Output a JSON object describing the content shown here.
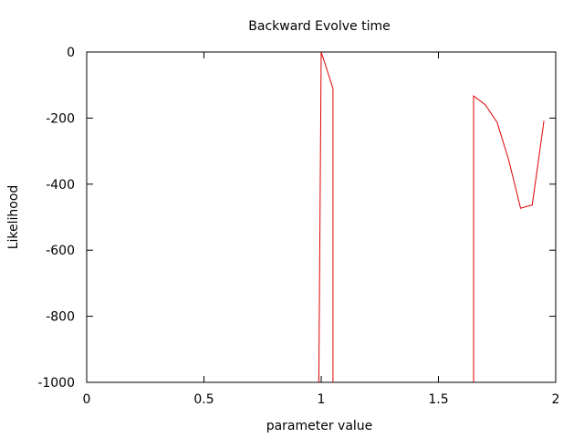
{
  "chart_data": {
    "type": "line",
    "title": "Backward Evolve time",
    "xlabel": "parameter value",
    "ylabel": "Likelihood",
    "xlim": [
      0,
      2
    ],
    "ylim": [
      -1000,
      0
    ],
    "x_ticks": [
      {
        "value": 0,
        "label": "0"
      },
      {
        "value": 0.5,
        "label": "0.5"
      },
      {
        "value": 1,
        "label": "1"
      },
      {
        "value": 1.5,
        "label": "1.5"
      },
      {
        "value": 2,
        "label": "2"
      }
    ],
    "y_ticks": [
      {
        "value": 0,
        "label": "0"
      },
      {
        "value": -200,
        "label": "-200"
      },
      {
        "value": -400,
        "label": "-400"
      },
      {
        "value": -600,
        "label": "-600"
      },
      {
        "value": -800,
        "label": "-800"
      },
      {
        "value": -1000,
        "label": "-1000"
      }
    ],
    "grid": false,
    "legend": "none",
    "series": [
      {
        "color": "#e00000",
        "segments": [
          {
            "x": [
              0.99,
              1.0,
              1.05,
              1.05
            ],
            "y": [
              -1000,
              0,
              -110,
              -1000
            ]
          },
          {
            "x": [
              1.65,
              1.65,
              1.7,
              1.75,
              1.8,
              1.85,
              1.9,
              1.95
            ],
            "y": [
              -1000,
              -133,
              -160,
              -213,
              -328,
              -473,
              -463,
              -208
            ]
          }
        ]
      }
    ]
  }
}
